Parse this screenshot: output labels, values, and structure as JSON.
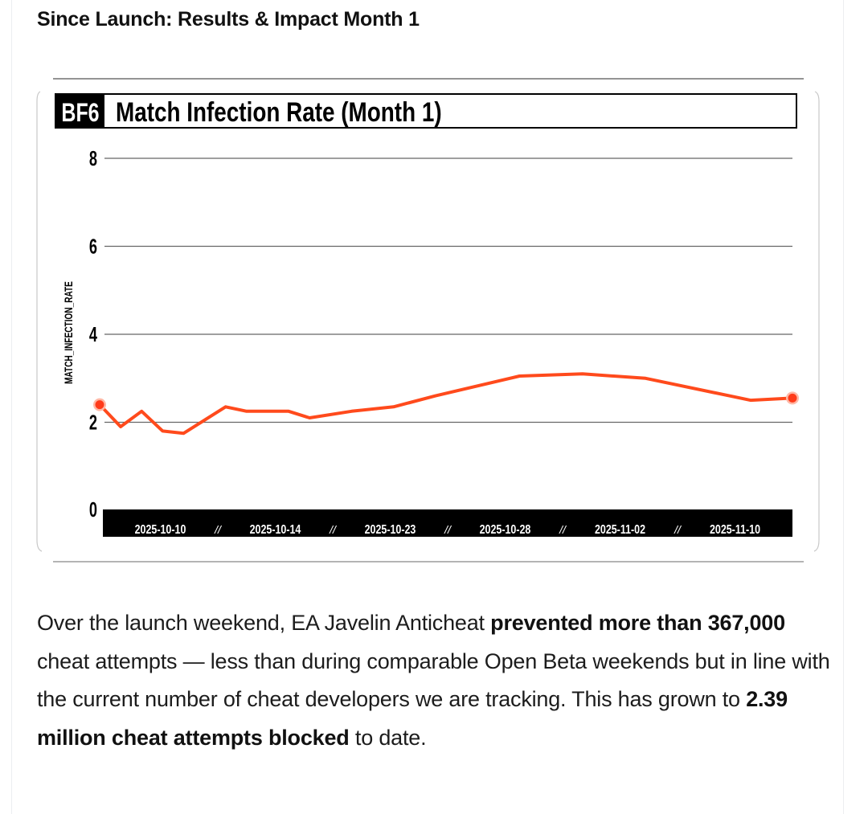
{
  "article": {
    "heading": "Since Launch: Results & Impact Month 1",
    "paragraph": {
      "part1": "Over the launch weekend, EA Javelin Anticheat ",
      "bold1": "prevented more than 367,000",
      "part2": " cheat attempts — less than during comparable Open Beta weekends but in line with the current number of cheat developers we are tracking. This has grown to ",
      "bold2": "2.39 million cheat attempts blocked",
      "part3": " to date."
    }
  },
  "chart": {
    "badge": "BF6",
    "title": "Match Infection Rate (Month 1)",
    "ylabel": "MATCH_INFECTION_RATE",
    "separator": "//",
    "colors": {
      "line": "#ff4a1c",
      "endpoint_fill": "#ff3b1a",
      "endpoint_ring": "#ffb8a6",
      "axis_bar": "#000000",
      "gridline": "#666666"
    }
  },
  "chart_data": {
    "type": "line",
    "ylim": [
      0,
      8
    ],
    "yticks": [
      0,
      2,
      4,
      6,
      8
    ],
    "xrange": [
      "2025-10-10",
      "2025-11-12"
    ],
    "x_tick_labels": [
      "2025-10-10",
      "2025-10-14",
      "2025-10-23",
      "2025-10-28",
      "2025-11-02",
      "2025-11-10"
    ],
    "grid": true,
    "series": [
      {
        "points": [
          {
            "x": "2025-10-10",
            "y": 2.4
          },
          {
            "x": "2025-10-11",
            "y": 1.9
          },
          {
            "x": "2025-10-12",
            "y": 2.25
          },
          {
            "x": "2025-10-13",
            "y": 1.8
          },
          {
            "x": "2025-10-14",
            "y": 1.75
          },
          {
            "x": "2025-10-16",
            "y": 2.35
          },
          {
            "x": "2025-10-17",
            "y": 2.25
          },
          {
            "x": "2025-10-19",
            "y": 2.25
          },
          {
            "x": "2025-10-20",
            "y": 2.1
          },
          {
            "x": "2025-10-22",
            "y": 2.25
          },
          {
            "x": "2025-10-24",
            "y": 2.35
          },
          {
            "x": "2025-10-26",
            "y": 2.6
          },
          {
            "x": "2025-10-30",
            "y": 3.05
          },
          {
            "x": "2025-11-02",
            "y": 3.1
          },
          {
            "x": "2025-11-05",
            "y": 3.0
          },
          {
            "x": "2025-11-09",
            "y": 2.6
          },
          {
            "x": "2025-11-10",
            "y": 2.5
          },
          {
            "x": "2025-11-12",
            "y": 2.55
          }
        ]
      }
    ]
  }
}
